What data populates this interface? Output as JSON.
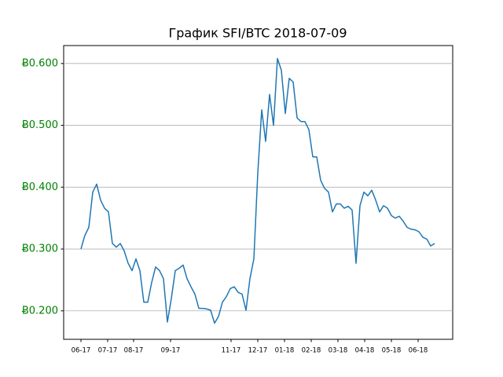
{
  "chart_data": {
    "type": "line",
    "title": "График SFI/BTC 2018-07-09",
    "color": "#1f77b4",
    "tick_color": "#008000",
    "grid": "y",
    "xlim": [
      -4.4,
      94.6
    ],
    "ylim": [
      0.154,
      0.629
    ],
    "xticks": [
      {
        "value": 0,
        "label": "06-17"
      },
      {
        "value": 6.8,
        "label": "07-17"
      },
      {
        "value": 13.4,
        "label": "08-17"
      },
      {
        "value": 22.8,
        "label": "09-17"
      },
      {
        "value": 38.2,
        "label": "11-17"
      },
      {
        "value": 45,
        "label": "12-17"
      },
      {
        "value": 51.8,
        "label": "01-18"
      },
      {
        "value": 58.6,
        "label": "02-18"
      },
      {
        "value": 65.4,
        "label": "03-18"
      },
      {
        "value": 72.2,
        "label": "04-18"
      },
      {
        "value": 79,
        "label": "05-18"
      },
      {
        "value": 85.8,
        "label": "06-18"
      }
    ],
    "yticks": [
      {
        "value": 0.2,
        "label": "Ƀ0.200"
      },
      {
        "value": 0.3,
        "label": "Ƀ0.300"
      },
      {
        "value": 0.4,
        "label": "Ƀ0.400"
      },
      {
        "value": 0.5,
        "label": "Ƀ0.500"
      },
      {
        "value": 0.6,
        "label": "Ƀ0.600"
      }
    ],
    "values": [
      0.3,
      0.322,
      0.335,
      0.392,
      0.405,
      0.379,
      0.366,
      0.36,
      0.309,
      0.303,
      0.309,
      0.297,
      0.277,
      0.265,
      0.284,
      0.265,
      0.214,
      0.214,
      0.246,
      0.271,
      0.265,
      0.252,
      0.182,
      0.22,
      0.265,
      0.269,
      0.274,
      0.252,
      0.239,
      0.227,
      0.204,
      0.204,
      0.203,
      0.201,
      0.18,
      0.191,
      0.214,
      0.223,
      0.236,
      0.239,
      0.23,
      0.227,
      0.201,
      0.252,
      0.284,
      0.423,
      0.525,
      0.474,
      0.55,
      0.5,
      0.608,
      0.589,
      0.519,
      0.576,
      0.57,
      0.512,
      0.506,
      0.506,
      0.493,
      0.449,
      0.449,
      0.411,
      0.398,
      0.392,
      0.36,
      0.373,
      0.373,
      0.366,
      0.369,
      0.363,
      0.277,
      0.37,
      0.392,
      0.386,
      0.395,
      0.379,
      0.36,
      0.37,
      0.366,
      0.354,
      0.35,
      0.353,
      0.345,
      0.335,
      0.332,
      0.331,
      0.328,
      0.319,
      0.316,
      0.305,
      0.309
    ]
  }
}
